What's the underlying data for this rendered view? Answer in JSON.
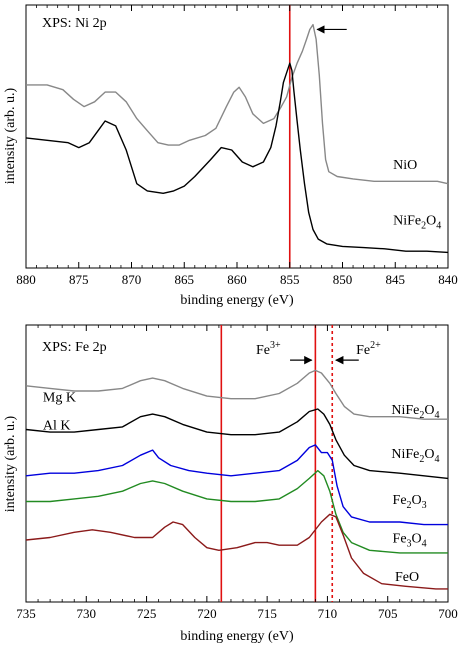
{
  "chart_data": [
    {
      "type": "line",
      "title": "XPS: Ni 2p",
      "xlabel": "binding energy (eV)",
      "ylabel": "intensity (arb. u.)",
      "xlim": [
        880,
        840
      ],
      "x_reversed": true,
      "ylim": [
        0,
        100
      ],
      "xticks": [
        880,
        875,
        870,
        865,
        860,
        855,
        850,
        845,
        840
      ],
      "xtick_labels": [
        "880",
        "875",
        "870",
        "865",
        "860",
        "855",
        "850",
        "845",
        "840"
      ],
      "vlines": [
        {
          "x": 855.0,
          "color": "#e01010",
          "style": "solid"
        }
      ],
      "annotations": [
        {
          "type": "arrow",
          "label": "",
          "x_from": 849.6,
          "x_to": 852.4,
          "y": 94
        }
      ],
      "series": [
        {
          "name": "NiO",
          "color": "#888888",
          "label_x": 845.2,
          "label_y": 36,
          "points": [
            [
              880,
              71
            ],
            [
              878,
              71
            ],
            [
              876.5,
              69
            ],
            [
              875.5,
              65
            ],
            [
              874.5,
              62
            ],
            [
              873.5,
              64
            ],
            [
              872.5,
              68
            ],
            [
              871.5,
              68
            ],
            [
              870.5,
              64
            ],
            [
              869.5,
              57
            ],
            [
              868.5,
              52
            ],
            [
              867.5,
              47
            ],
            [
              866.5,
              46
            ],
            [
              865.5,
              46
            ],
            [
              864.5,
              48
            ],
            [
              863,
              50
            ],
            [
              862,
              53
            ],
            [
              861,
              62
            ],
            [
              860.3,
              68
            ],
            [
              859.8,
              70
            ],
            [
              859.2,
              66
            ],
            [
              858.5,
              59
            ],
            [
              857.5,
              55
            ],
            [
              856.5,
              57
            ],
            [
              855.8,
              62
            ],
            [
              855.3,
              66
            ],
            [
              854.8,
              74
            ],
            [
              854.3,
              80
            ],
            [
              853.8,
              85
            ],
            [
              853.4,
              90
            ],
            [
              853.1,
              94
            ],
            [
              852.8,
              96
            ],
            [
              852.5,
              90
            ],
            [
              852.2,
              75
            ],
            [
              851.9,
              55
            ],
            [
              851.6,
              40
            ],
            [
              851.3,
              35
            ],
            [
              850.5,
              33
            ],
            [
              849,
              32
            ],
            [
              847,
              31
            ],
            [
              845,
              31
            ],
            [
              843,
              31
            ],
            [
              841,
              31
            ],
            [
              840,
              30
            ]
          ]
        },
        {
          "name": "NiFe2O4",
          "display_base": "NiFe",
          "display_sub1": "2",
          "display_mid": "O",
          "display_sub2": "4",
          "color": "#000000",
          "label_x": 845.2,
          "label_y": 13,
          "points": [
            [
              880,
              49
            ],
            [
              878,
              48
            ],
            [
              876,
              47
            ],
            [
              875,
              45
            ],
            [
              874,
              47
            ],
            [
              873,
              53
            ],
            [
              872.5,
              56
            ],
            [
              871.5,
              54
            ],
            [
              870.5,
              44
            ],
            [
              869.5,
              30
            ],
            [
              868.5,
              27
            ],
            [
              867,
              26
            ],
            [
              866,
              27
            ],
            [
              865,
              29
            ],
            [
              864,
              33
            ],
            [
              862.5,
              40
            ],
            [
              861.5,
              45
            ],
            [
              860.5,
              44
            ],
            [
              859.5,
              39
            ],
            [
              858.5,
              37
            ],
            [
              857.5,
              39
            ],
            [
              856.8,
              45
            ],
            [
              856.3,
              54
            ],
            [
              855.9,
              64
            ],
            [
              855.6,
              72
            ],
            [
              855.3,
              76
            ],
            [
              855.0,
              80
            ],
            [
              854.8,
              77
            ],
            [
              854.6,
              68
            ],
            [
              854.3,
              56
            ],
            [
              854.0,
              44
            ],
            [
              853.6,
              30
            ],
            [
              853.2,
              18
            ],
            [
              852.8,
              11
            ],
            [
              852.3,
              7
            ],
            [
              851.5,
              5
            ],
            [
              850,
              4
            ],
            [
              848,
              3.5
            ],
            [
              846,
              3
            ],
            [
              844,
              2
            ],
            [
              842,
              2
            ],
            [
              840,
              1.5
            ]
          ]
        }
      ]
    },
    {
      "type": "line",
      "title": "XPS: Fe 2p",
      "xlabel": "binding energy (eV)",
      "ylabel": "intensity (arb. u.)",
      "xlim": [
        735,
        700
      ],
      "x_reversed": true,
      "ylim": [
        0,
        100
      ],
      "xticks": [
        735,
        730,
        725,
        720,
        715,
        710,
        705,
        700
      ],
      "xtick_labels": [
        "735",
        "730",
        "725",
        "720",
        "715",
        "710",
        "705",
        "700"
      ],
      "vlines": [
        {
          "x": 718.8,
          "color": "#e01010",
          "style": "solid"
        },
        {
          "x": 711.0,
          "color": "#e01010",
          "style": "solid"
        },
        {
          "x": 709.6,
          "color": "#e01010",
          "style": "dotted"
        }
      ],
      "annotations": [
        {
          "type": "arrow-label",
          "base": "Fe",
          "sup": "3+",
          "x_text": 714.9,
          "x_from": 713.1,
          "x_to": 711.3,
          "y": 91
        },
        {
          "type": "arrow-label",
          "base": "Fe",
          "sup": "2+",
          "x_text": 706.6,
          "x_from": 707.4,
          "x_to": 709.3,
          "y": 91
        }
      ],
      "side_labels": [
        {
          "text": "Mg K",
          "x": 733.6,
          "y": 75
        },
        {
          "text": "Al K",
          "x": 733.6,
          "y": 64
        }
      ],
      "series": [
        {
          "name": "NiFe2O4",
          "display_base": "NiFe",
          "display_sub1": "2",
          "display_mid": "O",
          "display_sub2": "4",
          "color": "#888888",
          "label_x": 704.7,
          "label_y": 70,
          "points": [
            [
              735,
              81
            ],
            [
              733,
              80
            ],
            [
              731,
              79
            ],
            [
              729,
              79
            ],
            [
              727,
              80
            ],
            [
              725.5,
              83
            ],
            [
              724.5,
              84
            ],
            [
              723.5,
              83
            ],
            [
              722,
              80
            ],
            [
              720,
              77
            ],
            [
              718,
              76
            ],
            [
              716,
              76
            ],
            [
              714,
              78
            ],
            [
              712.5,
              82
            ],
            [
              711.5,
              86
            ],
            [
              711,
              87
            ],
            [
              710.5,
              86
            ],
            [
              709.8,
              82
            ],
            [
              709.3,
              78
            ],
            [
              708.6,
              73
            ],
            [
              707.8,
              70
            ],
            [
              706.5,
              69
            ],
            [
              704,
              69
            ],
            [
              702,
              68
            ],
            [
              700,
              68
            ]
          ]
        },
        {
          "name": "NiFe2O4",
          "display_base": "NiFe",
          "display_sub1": "2",
          "display_mid": "O",
          "display_sub2": "4",
          "color": "#000000",
          "label_x": 704.7,
          "label_y": 53,
          "points": [
            [
              735,
              64
            ],
            [
              733,
              63
            ],
            [
              731,
              63
            ],
            [
              729,
              64
            ],
            [
              727,
              65
            ],
            [
              725.5,
              69
            ],
            [
              724.5,
              70
            ],
            [
              723.5,
              69
            ],
            [
              722,
              66
            ],
            [
              720,
              63
            ],
            [
              718,
              62
            ],
            [
              716,
              62
            ],
            [
              714,
              63
            ],
            [
              712.5,
              67
            ],
            [
              711.5,
              71
            ],
            [
              710.8,
              72
            ],
            [
              710.3,
              70
            ],
            [
              709.8,
              66
            ],
            [
              709.3,
              60
            ],
            [
              708.6,
              54
            ],
            [
              707.8,
              50
            ],
            [
              706.5,
              48
            ],
            [
              704,
              47
            ],
            [
              702,
              46
            ],
            [
              700,
              45
            ]
          ]
        },
        {
          "name": "Fe2O3",
          "display_base": "Fe",
          "display_sub1": "2",
          "display_mid": "O",
          "display_sub2": "3",
          "color": "#0000dd",
          "label_x": 704.6,
          "label_y": 35,
          "points": [
            [
              735,
              46
            ],
            [
              733,
              47
            ],
            [
              731,
              47
            ],
            [
              729,
              48
            ],
            [
              727,
              50
            ],
            [
              725.5,
              54
            ],
            [
              724.5,
              56
            ],
            [
              724,
              53
            ],
            [
              723,
              50
            ],
            [
              721.5,
              48
            ],
            [
              720,
              47
            ],
            [
              718,
              46
            ],
            [
              716,
              47
            ],
            [
              714,
              48
            ],
            [
              712.5,
              52
            ],
            [
              711.5,
              57
            ],
            [
              711,
              58
            ],
            [
              710.5,
              55
            ],
            [
              710,
              55
            ],
            [
              709.6,
              52
            ],
            [
              709.2,
              42
            ],
            [
              708.7,
              34
            ],
            [
              708,
              30
            ],
            [
              706.5,
              28
            ],
            [
              704,
              28
            ],
            [
              702,
              27
            ],
            [
              700,
              27
            ]
          ]
        },
        {
          "name": "Fe3O4",
          "display_base": "Fe",
          "display_sub1": "3",
          "display_mid": "O",
          "display_sub2": "4",
          "color": "#228b22",
          "label_x": 704.6,
          "label_y": 20,
          "points": [
            [
              735,
              36
            ],
            [
              733,
              36
            ],
            [
              731,
              37
            ],
            [
              729,
              38
            ],
            [
              727,
              40
            ],
            [
              725.5,
              43
            ],
            [
              724.5,
              44
            ],
            [
              723.5,
              43
            ],
            [
              722,
              40
            ],
            [
              720,
              37
            ],
            [
              718,
              36
            ],
            [
              716,
              36
            ],
            [
              714,
              37
            ],
            [
              712.5,
              41
            ],
            [
              711.5,
              45
            ],
            [
              710.8,
              48
            ],
            [
              710.3,
              46
            ],
            [
              709.8,
              40
            ],
            [
              709.3,
              31
            ],
            [
              708.7,
              24
            ],
            [
              708,
              20
            ],
            [
              706.5,
              17
            ],
            [
              704,
              16
            ],
            [
              702,
              16
            ],
            [
              700,
              16
            ]
          ]
        },
        {
          "name": "FeO",
          "color": "#8b1a1a",
          "label_x": 704.4,
          "label_y": 5,
          "points": [
            [
              735,
              21
            ],
            [
              733,
              22
            ],
            [
              731,
              24
            ],
            [
              729.5,
              25
            ],
            [
              728,
              24
            ],
            [
              726,
              22
            ],
            [
              724.5,
              22
            ],
            [
              723.5,
              26
            ],
            [
              722.8,
              28
            ],
            [
              722,
              27
            ],
            [
              721,
              22
            ],
            [
              720,
              18
            ],
            [
              719,
              17
            ],
            [
              717.5,
              18
            ],
            [
              716,
              20
            ],
            [
              715,
              20
            ],
            [
              714,
              19
            ],
            [
              712.5,
              19
            ],
            [
              711.5,
              22
            ],
            [
              710.5,
              28
            ],
            [
              709.8,
              31
            ],
            [
              709.3,
              30
            ],
            [
              708.7,
              23
            ],
            [
              708,
              14
            ],
            [
              707,
              8
            ],
            [
              705.5,
              4
            ],
            [
              703.5,
              3
            ],
            [
              701,
              2
            ],
            [
              700,
              2
            ]
          ]
        }
      ]
    }
  ]
}
